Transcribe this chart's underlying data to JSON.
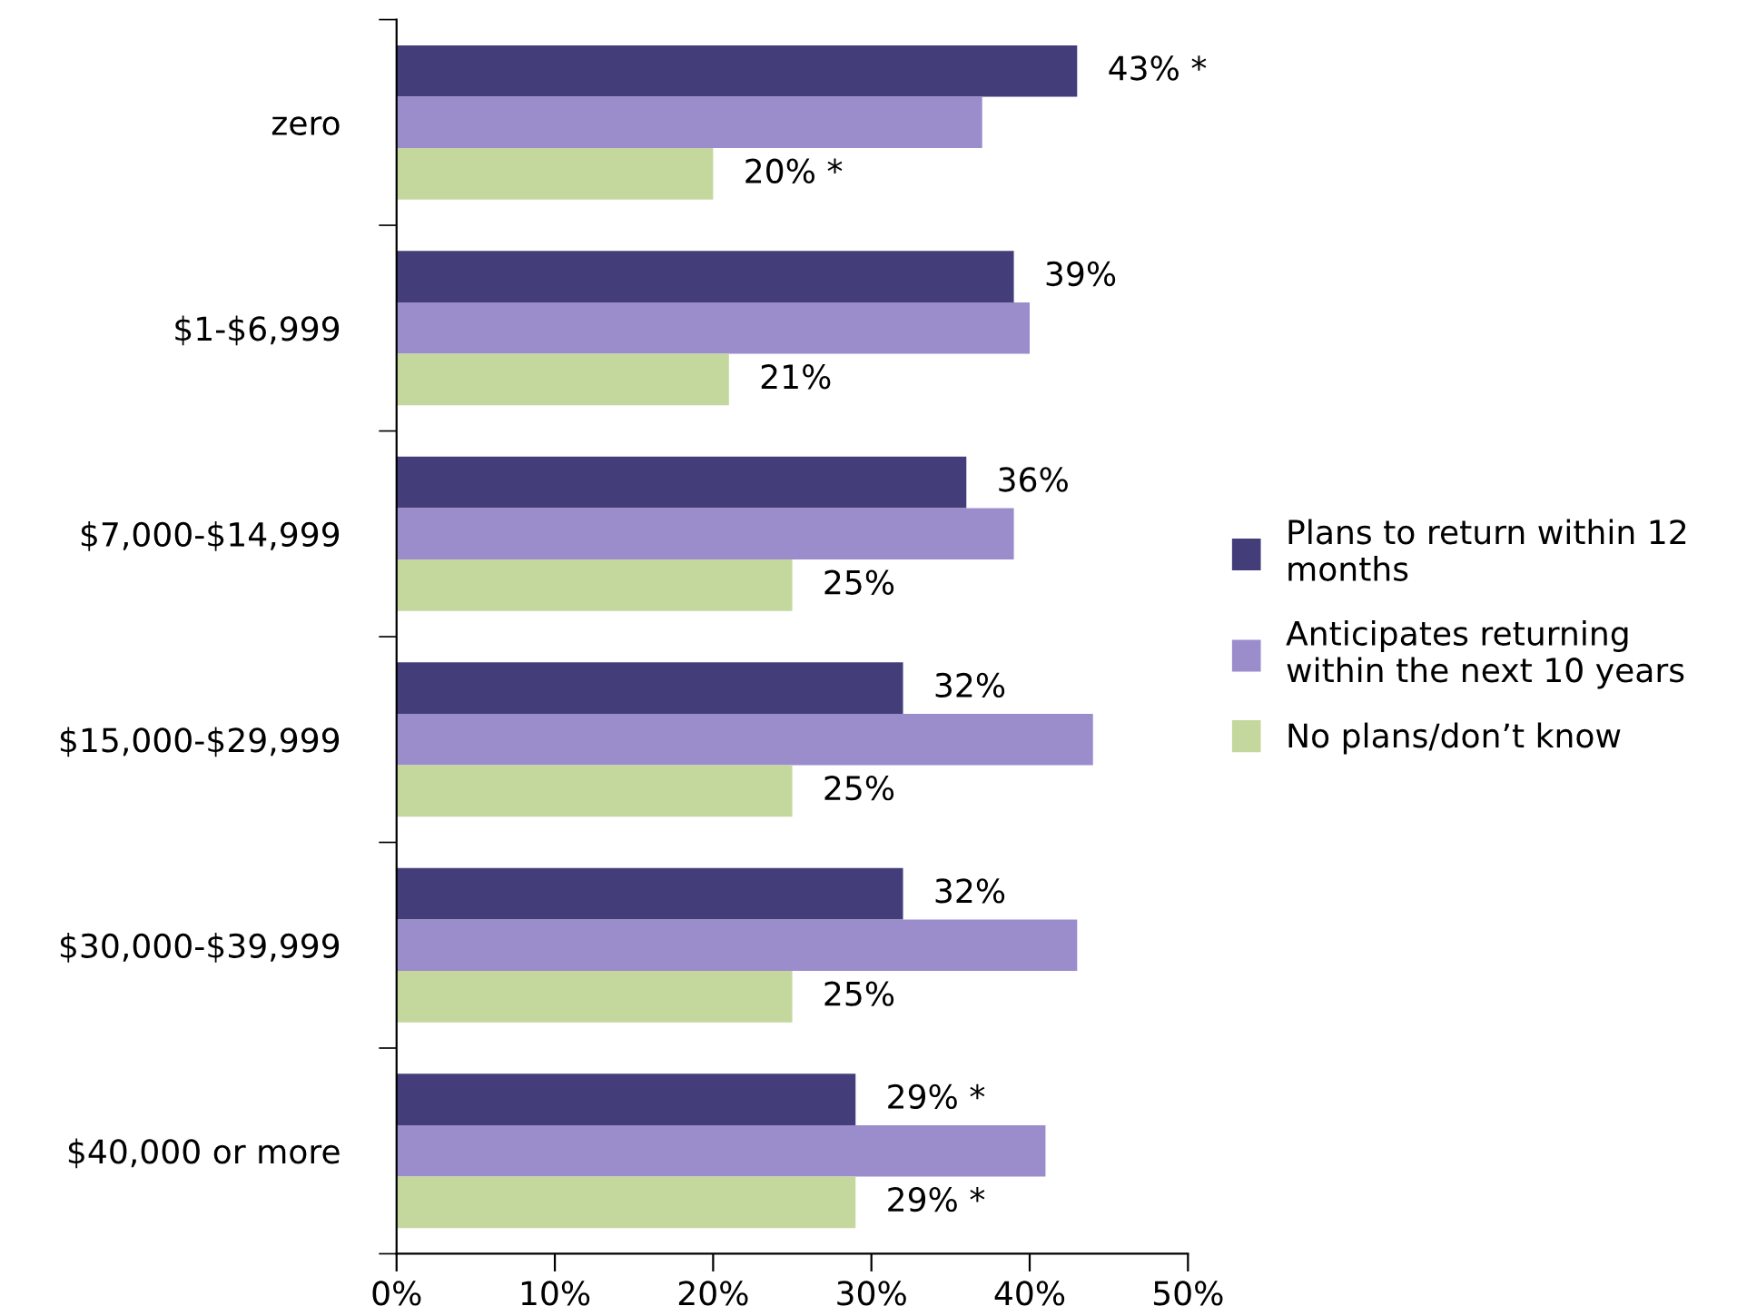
{
  "chart_data": {
    "type": "bar",
    "orientation": "horizontal",
    "categories": [
      "zero",
      "$1-$6,999",
      "$7,000-$14,999",
      "$15,000-$29,999",
      "$30,000-$39,999",
      "$40,000 or more"
    ],
    "series": [
      {
        "name": "Plans to return within 12\nmonths",
        "color": "#433e7a",
        "values": [
          43,
          39,
          36,
          32,
          32,
          29
        ],
        "value_labels": [
          "43% *",
          "39%",
          "36%",
          "32%",
          "32%",
          "29% *"
        ]
      },
      {
        "name": "Anticipates returning\nwithin the next 10 years",
        "color": "#9b8ccc",
        "values": [
          37,
          40,
          39,
          44,
          43,
          41
        ]
      },
      {
        "name": "No plans/don’t know",
        "color": "#c4d89e",
        "values": [
          20,
          21,
          25,
          25,
          25,
          29
        ],
        "value_labels": [
          "20% *",
          "21%",
          "25%",
          "25%",
          "25%",
          "29% *"
        ]
      }
    ],
    "xlim": [
      0,
      50
    ],
    "xticks": [
      {
        "value": 0,
        "label": "0%"
      },
      {
        "value": 10,
        "label": "10%"
      },
      {
        "value": 20,
        "label": "20%"
      },
      {
        "value": 30,
        "label": "30%"
      },
      {
        "value": 40,
        "label": "40%"
      },
      {
        "value": 50,
        "label": "50%"
      }
    ],
    "grid": false,
    "legend": "right"
  }
}
